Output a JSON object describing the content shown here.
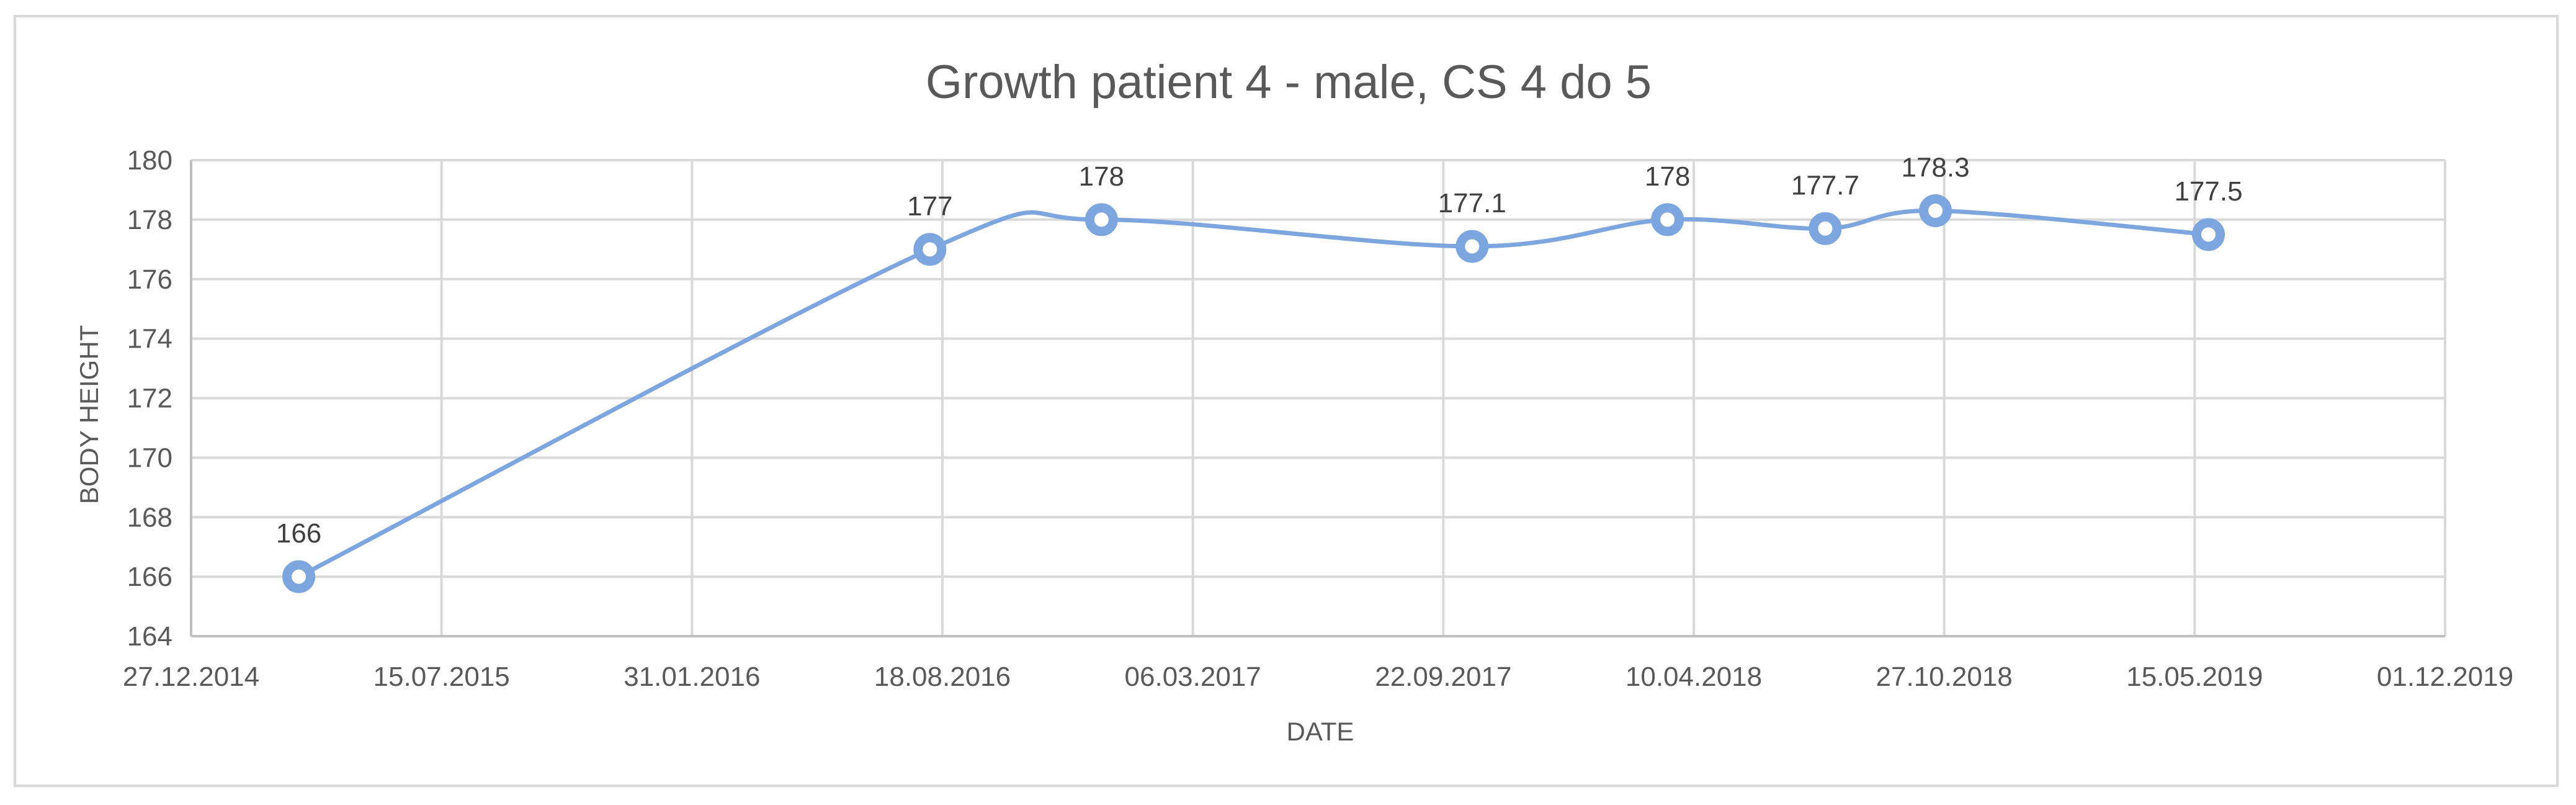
{
  "chart_data": {
    "type": "scatter",
    "title": "Growth patient 4 - male, CS 4 do 5",
    "xlabel": "DATE",
    "ylabel": "BODY HEIGHT",
    "ylim": [
      164,
      180
    ],
    "y_step": 2,
    "x_ticks": [
      "27.12.2014",
      "15.07.2015",
      "31.01.2016",
      "18.08.2016",
      "06.03.2017",
      "22.09.2017",
      "10.04.2018",
      "27.10.2018",
      "15.05.2019",
      "01.12.2019"
    ],
    "x_range_days": [
      0,
      1800
    ],
    "grid": true,
    "smooth_line": true,
    "series": [
      {
        "name": "Body height",
        "color": "#7ea6de",
        "points": [
          {
            "day": 86,
            "value": 166,
            "label": "166"
          },
          {
            "day": 590,
            "value": 177,
            "label": "177"
          },
          {
            "day": 727,
            "value": 178,
            "label": "178"
          },
          {
            "day": 1023,
            "value": 177.1,
            "label": "177.1"
          },
          {
            "day": 1179,
            "value": 178,
            "label": "178"
          },
          {
            "day": 1305,
            "value": 177.7,
            "label": "177.7"
          },
          {
            "day": 1393,
            "value": 178.3,
            "label": "178.3"
          },
          {
            "day": 1611,
            "value": 177.5,
            "label": "177.5"
          }
        ]
      }
    ]
  }
}
